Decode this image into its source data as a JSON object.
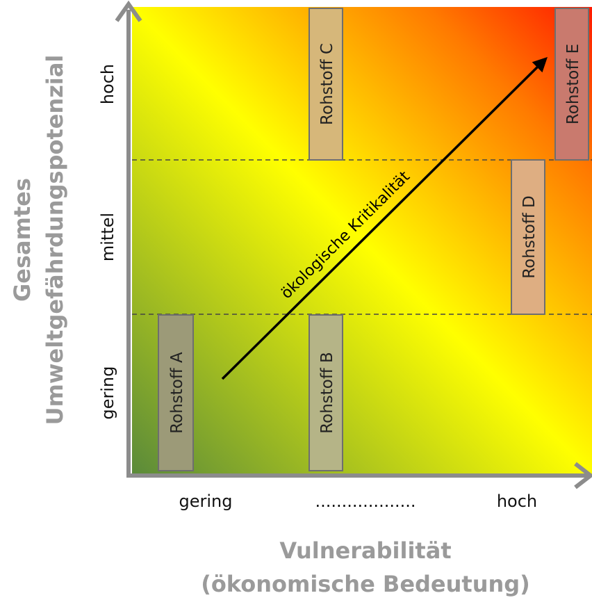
{
  "y_axis": {
    "title_line1": "Gesamtes",
    "title_line2": "Umweltgefährdungspotenzial",
    "levels": [
      "gering",
      "mittel",
      "hoch"
    ]
  },
  "x_axis": {
    "title_line1": "Vulnerabilität",
    "title_line2": "(ökonomische Bedeutung)",
    "levels": [
      "gering",
      "...................",
      "hoch"
    ]
  },
  "materials": [
    {
      "label": "Rohstoff A",
      "color": "#9c9a78"
    },
    {
      "label": "Rohstoff B",
      "color": "#b5b487"
    },
    {
      "label": "Rohstoff C",
      "color": "#d6b77a"
    },
    {
      "label": "Rohstoff D",
      "color": "#deae82"
    },
    {
      "label": "Rohstoff E",
      "color": "#c97a6e"
    }
  ],
  "arrow_label": "ökologische Kritikalität",
  "colors": {
    "gradient_low": "#5a8a3a",
    "gradient_mid": "#ffff00",
    "gradient_high": "#ff1a00",
    "axis": "#8c8c8c",
    "title": "#9a9a9a"
  }
}
